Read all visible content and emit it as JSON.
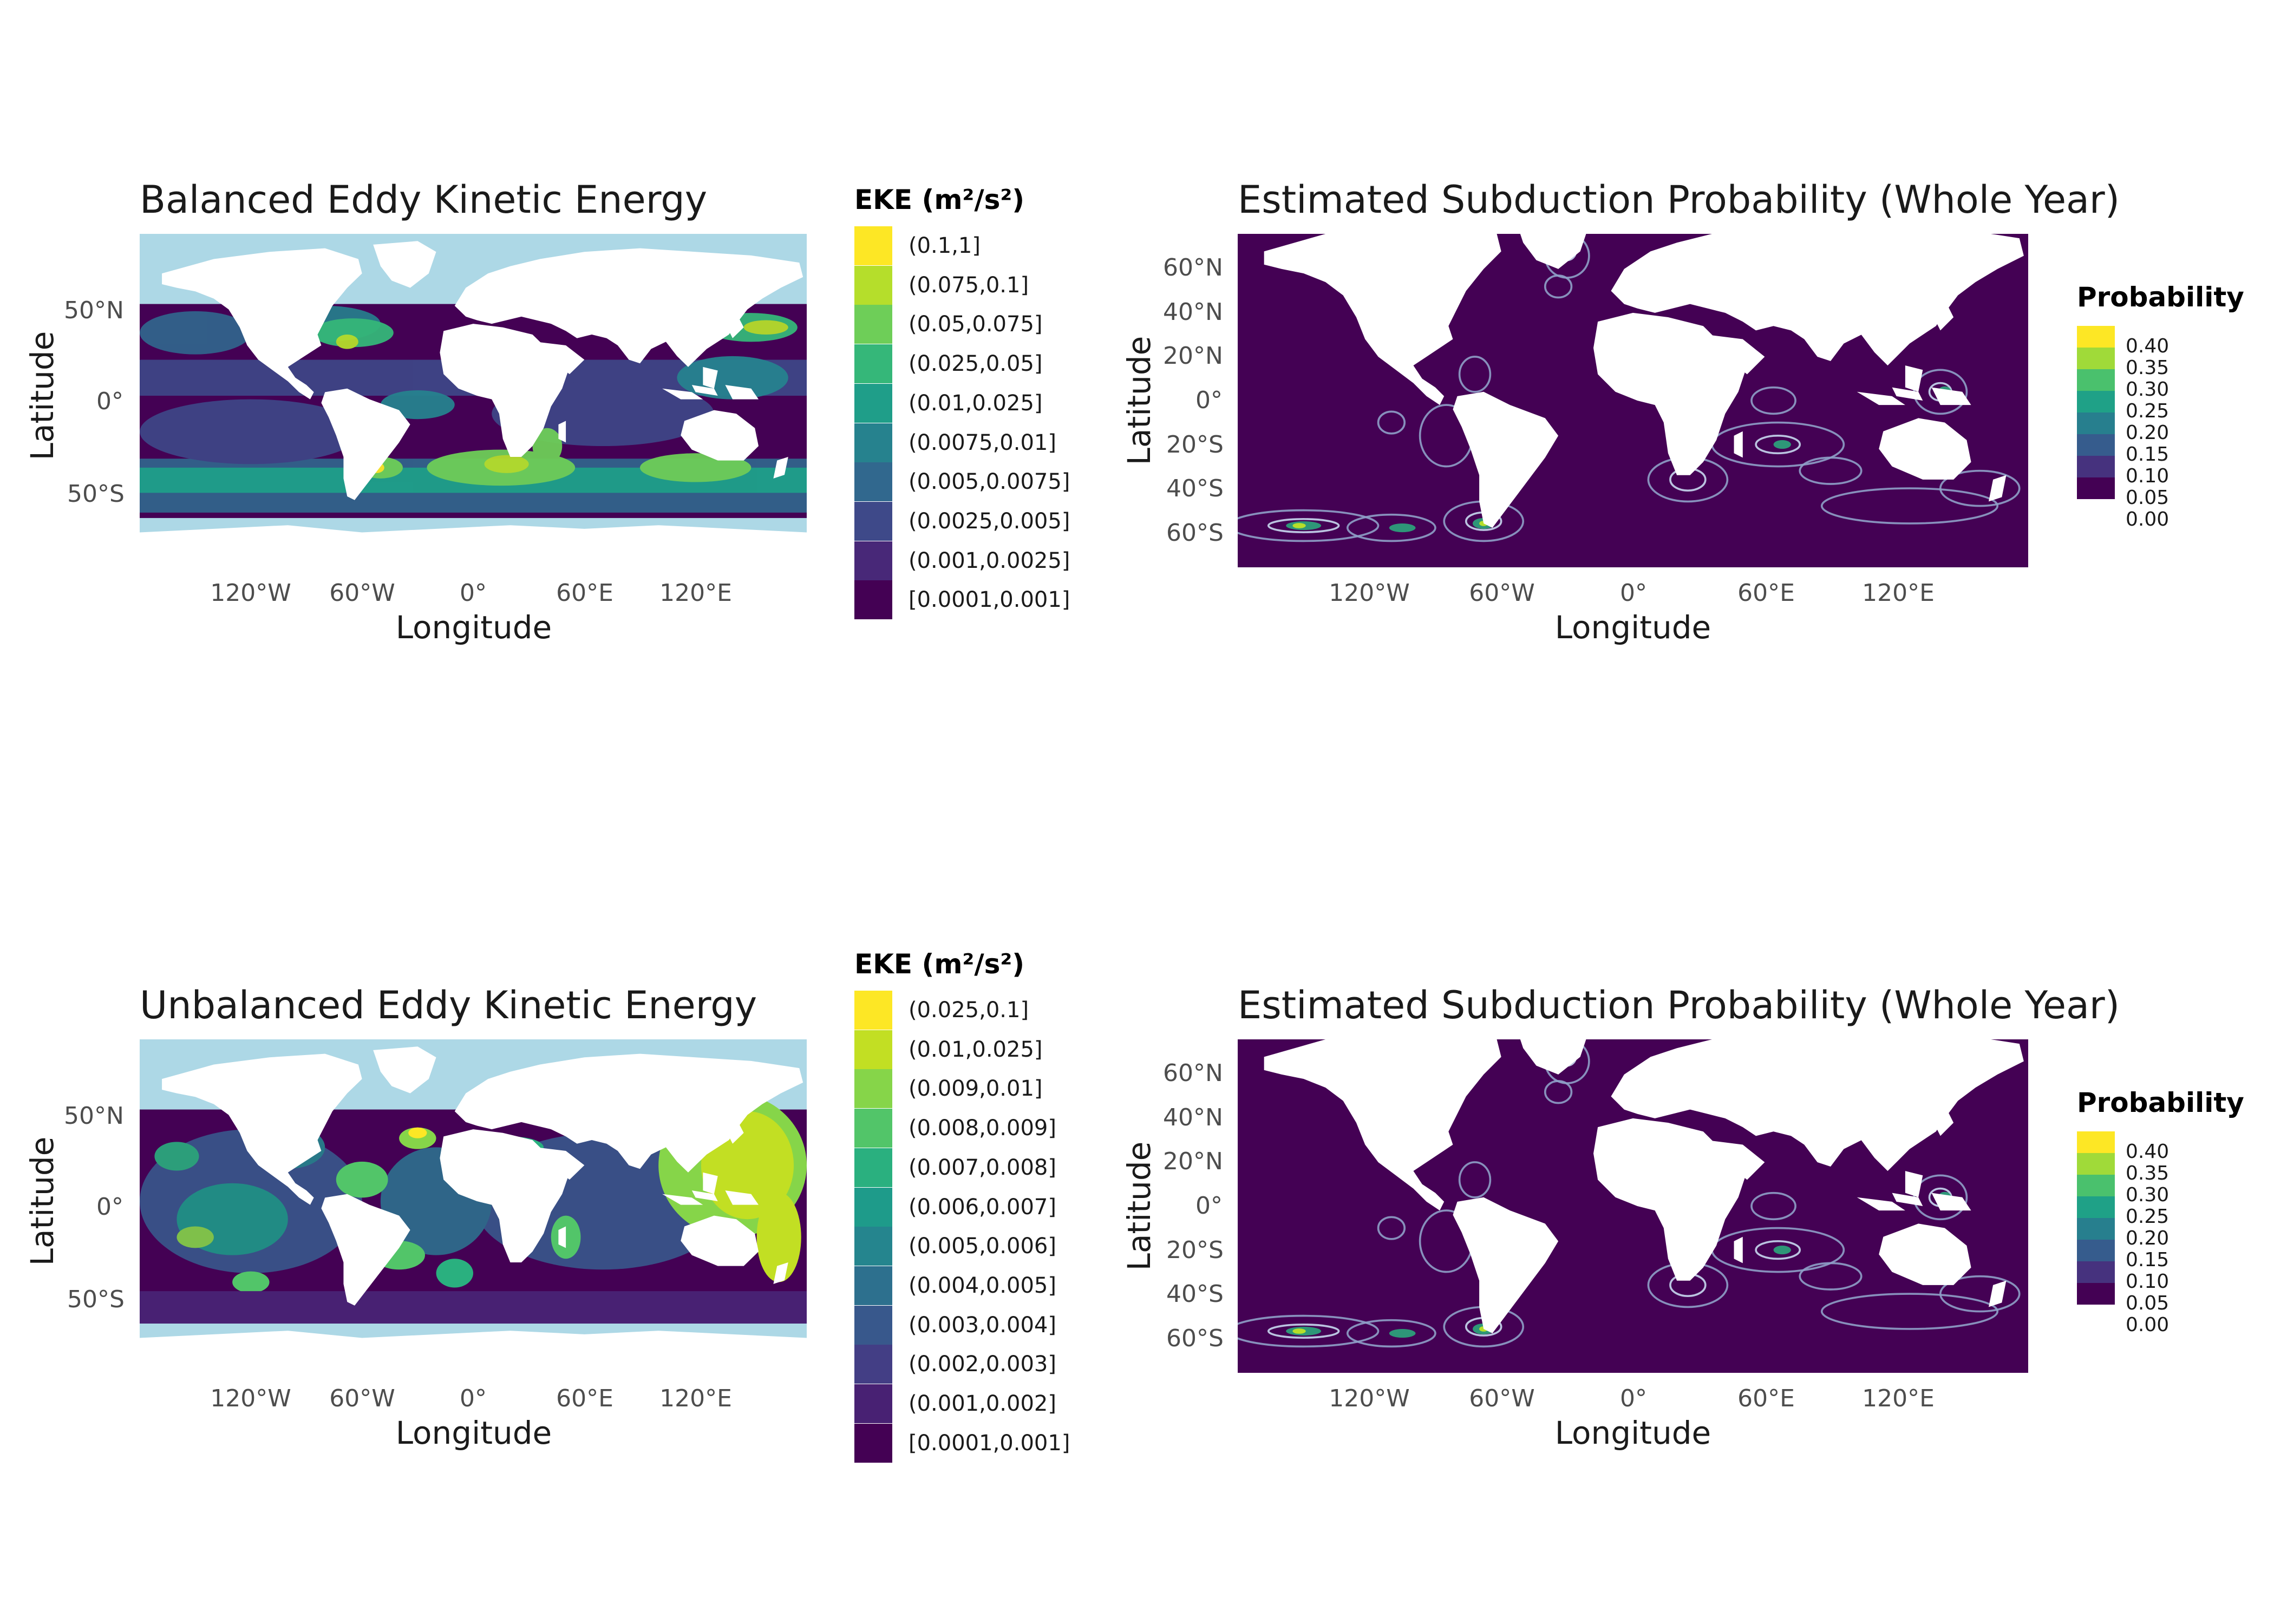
{
  "panels": [
    {
      "title": "Balanced Eddy Kinetic Energy",
      "xlabel": "Longitude",
      "ylabel": "Latitude",
      "xticks": [
        "120°W",
        "60°W",
        "0°",
        "60°E",
        "120°E"
      ],
      "yticks": [
        "50°N",
        "0°",
        "50°S"
      ],
      "legend": {
        "title": "EKE (m²/s²)",
        "items": [
          "(0.1,1]",
          "(0.075,0.1]",
          "(0.05,0.075]",
          "(0.025,0.05]",
          "(0.01,0.025]",
          "(0.0075,0.01]",
          "(0.005,0.0075]",
          "(0.0025,0.005]",
          "(0.001,0.0025]",
          "[0.0001,0.001]"
        ],
        "colors": [
          "#fde725",
          "#b5de2b",
          "#6ece58",
          "#35b779",
          "#1f9e89",
          "#26828e",
          "#31688e",
          "#3e4989",
          "#482878",
          "#440154"
        ]
      }
    },
    {
      "title": "Estimated Subduction Probability (Whole Year)",
      "xlabel": "Longitude",
      "ylabel": "Latitude",
      "xticks": [
        "120°W",
        "60°W",
        "0°",
        "60°E",
        "120°E"
      ],
      "yticks": [
        "60°N",
        "40°N",
        "20°N",
        "0°",
        "20°S",
        "40°S",
        "60°S"
      ],
      "legend": {
        "title": "Probability",
        "labels": [
          "0.40",
          "0.35",
          "0.30",
          "0.25",
          "0.20",
          "0.15",
          "0.10",
          "0.05",
          "0.00"
        ],
        "colors": [
          "#fde725",
          "#a0da39",
          "#4ac16d",
          "#1fa187",
          "#277f8e",
          "#365c8d",
          "#46327e",
          "#440154"
        ]
      }
    },
    {
      "title": "Unbalanced Eddy Kinetic Energy",
      "xlabel": "Longitude",
      "ylabel": "Latitude",
      "xticks": [
        "120°W",
        "60°W",
        "0°",
        "60°E",
        "120°E"
      ],
      "yticks": [
        "50°N",
        "0°",
        "50°S"
      ],
      "legend": {
        "title": "EKE (m²/s²)",
        "items": [
          "(0.025,0.1]",
          "(0.01,0.025]",
          "(0.009,0.01]",
          "(0.008,0.009]",
          "(0.007,0.008]",
          "(0.006,0.007]",
          "(0.005,0.006]",
          "(0.004,0.005]",
          "(0.003,0.004]",
          "(0.002,0.003]",
          "(0.001,0.002]",
          "[0.0001,0.001]"
        ],
        "colors": [
          "#fde725",
          "#c2df23",
          "#86d549",
          "#52c569",
          "#2ab07f",
          "#1e9b8a",
          "#25858e",
          "#2d708e",
          "#38588c",
          "#433e85",
          "#482173",
          "#440154"
        ]
      }
    },
    {
      "title": "Estimated Subduction Probability (Whole Year)",
      "xlabel": "Longitude",
      "ylabel": "Latitude",
      "xticks": [
        "120°W",
        "60°W",
        "0°",
        "60°E",
        "120°E"
      ],
      "yticks": [
        "60°N",
        "40°N",
        "20°N",
        "0°",
        "20°S",
        "40°S",
        "60°S"
      ],
      "legend": {
        "title": "Probability",
        "labels": [
          "0.40",
          "0.35",
          "0.30",
          "0.25",
          "0.20",
          "0.15",
          "0.10",
          "0.05",
          "0.00"
        ],
        "colors": [
          "#fde725",
          "#a0da39",
          "#4ac16d",
          "#1fa187",
          "#277f8e",
          "#365c8d",
          "#46327e",
          "#440154"
        ]
      }
    }
  ],
  "colors": {
    "ocean_beyond_data": "#add8e6",
    "land": "#ffffff",
    "probability_background": "#440154"
  }
}
